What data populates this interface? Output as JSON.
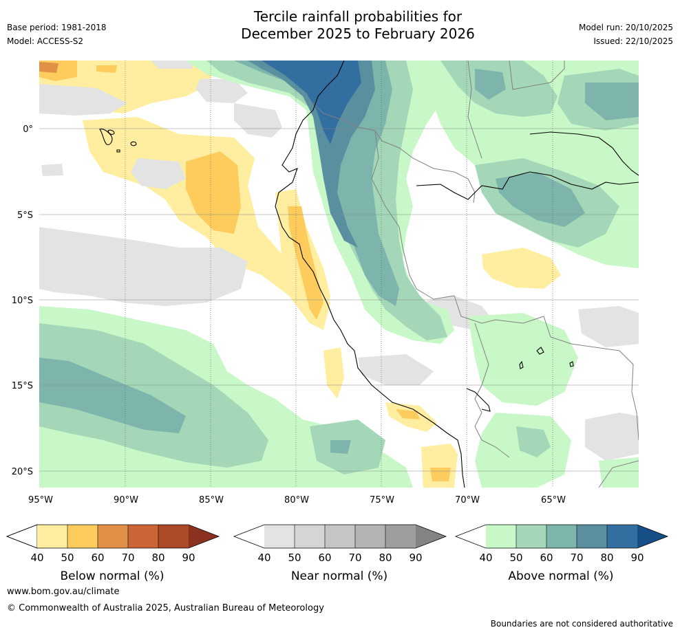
{
  "title": {
    "line1": "Tercile rainfall probabilities for",
    "line2": "December 2025 to February 2026"
  },
  "meta": {
    "base_period": "Base period: 1981-2018",
    "model": "Model: ACCESS-S2",
    "model_run": "Model run: 20/10/2025",
    "issued": "Issued: 22/10/2025"
  },
  "map": {
    "lon_ticks": [
      "95°W",
      "90°W",
      "85°W",
      "80°W",
      "75°W",
      "70°W",
      "65°W"
    ],
    "lat_ticks": [
      "0°",
      "5°S",
      "10°S",
      "15°S",
      "20°S"
    ],
    "legend": [
      {
        "title": "Below normal (%)",
        "ticks": [
          "40",
          "50",
          "60",
          "70",
          "80",
          "90"
        ],
        "colors": [
          "#ffeea0",
          "#fecc5c",
          "#e09146",
          "#cb6536",
          "#ad4a27",
          "#8a3120"
        ]
      },
      {
        "title": "Near normal (%)",
        "ticks": [
          "40",
          "50",
          "60",
          "70",
          "80",
          "90"
        ],
        "colors": [
          "#e3e3e3",
          "#d5d5d5",
          "#c5c5c5",
          "#b3b3b3",
          "#9e9e9e",
          "#848484"
        ]
      },
      {
        "title": "Above normal (%)",
        "ticks": [
          "40",
          "50",
          "60",
          "70",
          "80",
          "90"
        ],
        "colors": [
          "#c8f8c8",
          "#a3d7b7",
          "#7db5ad",
          "#5a8fa0",
          "#336ea0",
          "#164f86"
        ]
      }
    ]
  },
  "footer": {
    "url": "www.bom.gov.au/climate",
    "copyright": "© Commonwealth of Australia 2025, Australian Bureau of Meteorology",
    "disclaimer": "Boundaries are not considered authoritative"
  }
}
